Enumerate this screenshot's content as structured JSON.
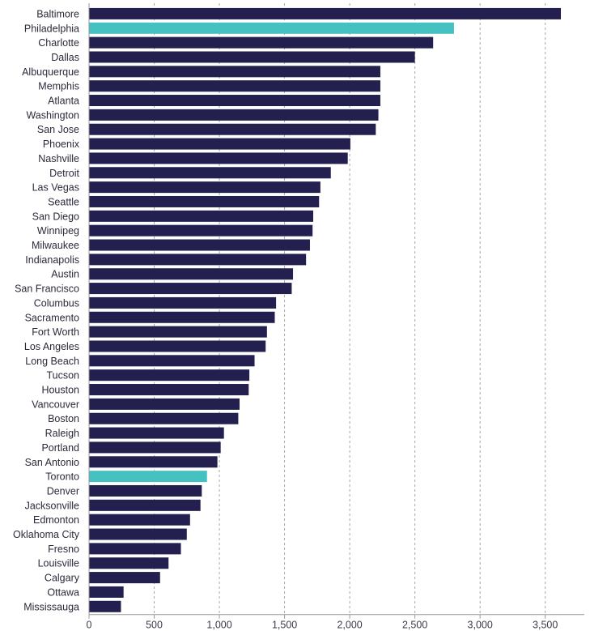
{
  "chart_data": {
    "type": "bar",
    "orientation": "horizontal",
    "grid": true,
    "grid_axis": "x",
    "xlim": [
      0,
      3800
    ],
    "xticks": [
      0,
      500,
      1000,
      1500,
      2000,
      2500,
      3000,
      3500
    ],
    "xtick_labels": [
      "0",
      "500",
      "1,000",
      "1,500",
      "2,000",
      "2,500",
      "3,000",
      "3,500"
    ],
    "colors": {
      "default": "#23204f",
      "highlight": "#45c1c2"
    },
    "categories": [
      "Baltimore",
      "Philadelphia",
      "Charlotte",
      "Dallas",
      "Albuquerque",
      "Memphis",
      "Atlanta",
      "Washington",
      "San Jose",
      "Phoenix",
      "Nashville",
      "Detroit",
      "Las Vegas",
      "Seattle",
      "San Diego",
      "Winnipeg",
      "Milwaukee",
      "Indianapolis",
      "Austin",
      "San Francisco",
      "Columbus",
      "Sacramento",
      "Fort Worth",
      "Los Angeles",
      "Long Beach",
      "Tucson",
      "Houston",
      "Vancouver",
      "Boston",
      "Raleigh",
      "Portland",
      "San Antonio",
      "Toronto",
      "Denver",
      "Jacksonville",
      "Edmonton",
      "Oklahoma City",
      "Fresno",
      "Louisville",
      "Calgary",
      "Ottawa",
      "Mississauga"
    ],
    "values": [
      3620,
      2800,
      2640,
      2500,
      2235,
      2235,
      2235,
      2220,
      2200,
      2005,
      1985,
      1855,
      1775,
      1765,
      1720,
      1715,
      1695,
      1665,
      1565,
      1555,
      1435,
      1425,
      1365,
      1355,
      1270,
      1230,
      1225,
      1155,
      1145,
      1035,
      1010,
      985,
      905,
      865,
      855,
      775,
      750,
      705,
      610,
      545,
      265,
      245
    ],
    "highlight": [
      "Philadelphia",
      "Toronto"
    ]
  }
}
